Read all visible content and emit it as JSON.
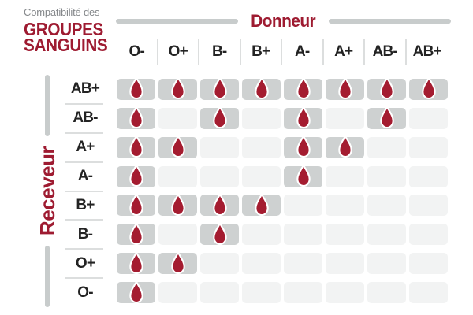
{
  "title": {
    "prefix": "Compatibilité des",
    "main1": "GROUPES",
    "main2": "SANGUINS"
  },
  "axes": {
    "donor": "Donneur",
    "recipient": "Receveur"
  },
  "chart_data": {
    "type": "heatmap",
    "title": "Compatibilité des GROUPES SANGUINS",
    "x_axis_label": "Donneur",
    "y_axis_label": "Receveur",
    "columns": [
      "O-",
      "O+",
      "B-",
      "B+",
      "A-",
      "A+",
      "AB-",
      "AB+"
    ],
    "rows": [
      "AB+",
      "AB-",
      "A+",
      "A-",
      "B+",
      "B-",
      "O+",
      "O-"
    ],
    "matrix": [
      [
        1,
        1,
        1,
        1,
        1,
        1,
        1,
        1
      ],
      [
        1,
        0,
        1,
        0,
        1,
        0,
        1,
        0
      ],
      [
        1,
        1,
        0,
        0,
        1,
        1,
        0,
        0
      ],
      [
        1,
        0,
        0,
        0,
        1,
        0,
        0,
        0
      ],
      [
        1,
        1,
        1,
        1,
        0,
        0,
        0,
        0
      ],
      [
        1,
        0,
        1,
        0,
        0,
        0,
        0,
        0
      ],
      [
        1,
        1,
        0,
        0,
        0,
        0,
        0,
        0
      ],
      [
        1,
        0,
        0,
        0,
        0,
        0,
        0,
        0
      ]
    ],
    "cell_marker_compatible": "blood-drop-icon",
    "cell_marker_incompatible": "empty",
    "legend_position": "none",
    "grid": false
  },
  "colors": {
    "brand_red": "#9e1b31",
    "drop_red": "#a41c30",
    "compatible_cell": "#ced1d1",
    "incompatible_cell": "#f2f3f3",
    "rule_gray": "#c8cccc",
    "separator_gray": "#dcdede",
    "text_dark": "#232323",
    "muted_text": "#85888b"
  }
}
